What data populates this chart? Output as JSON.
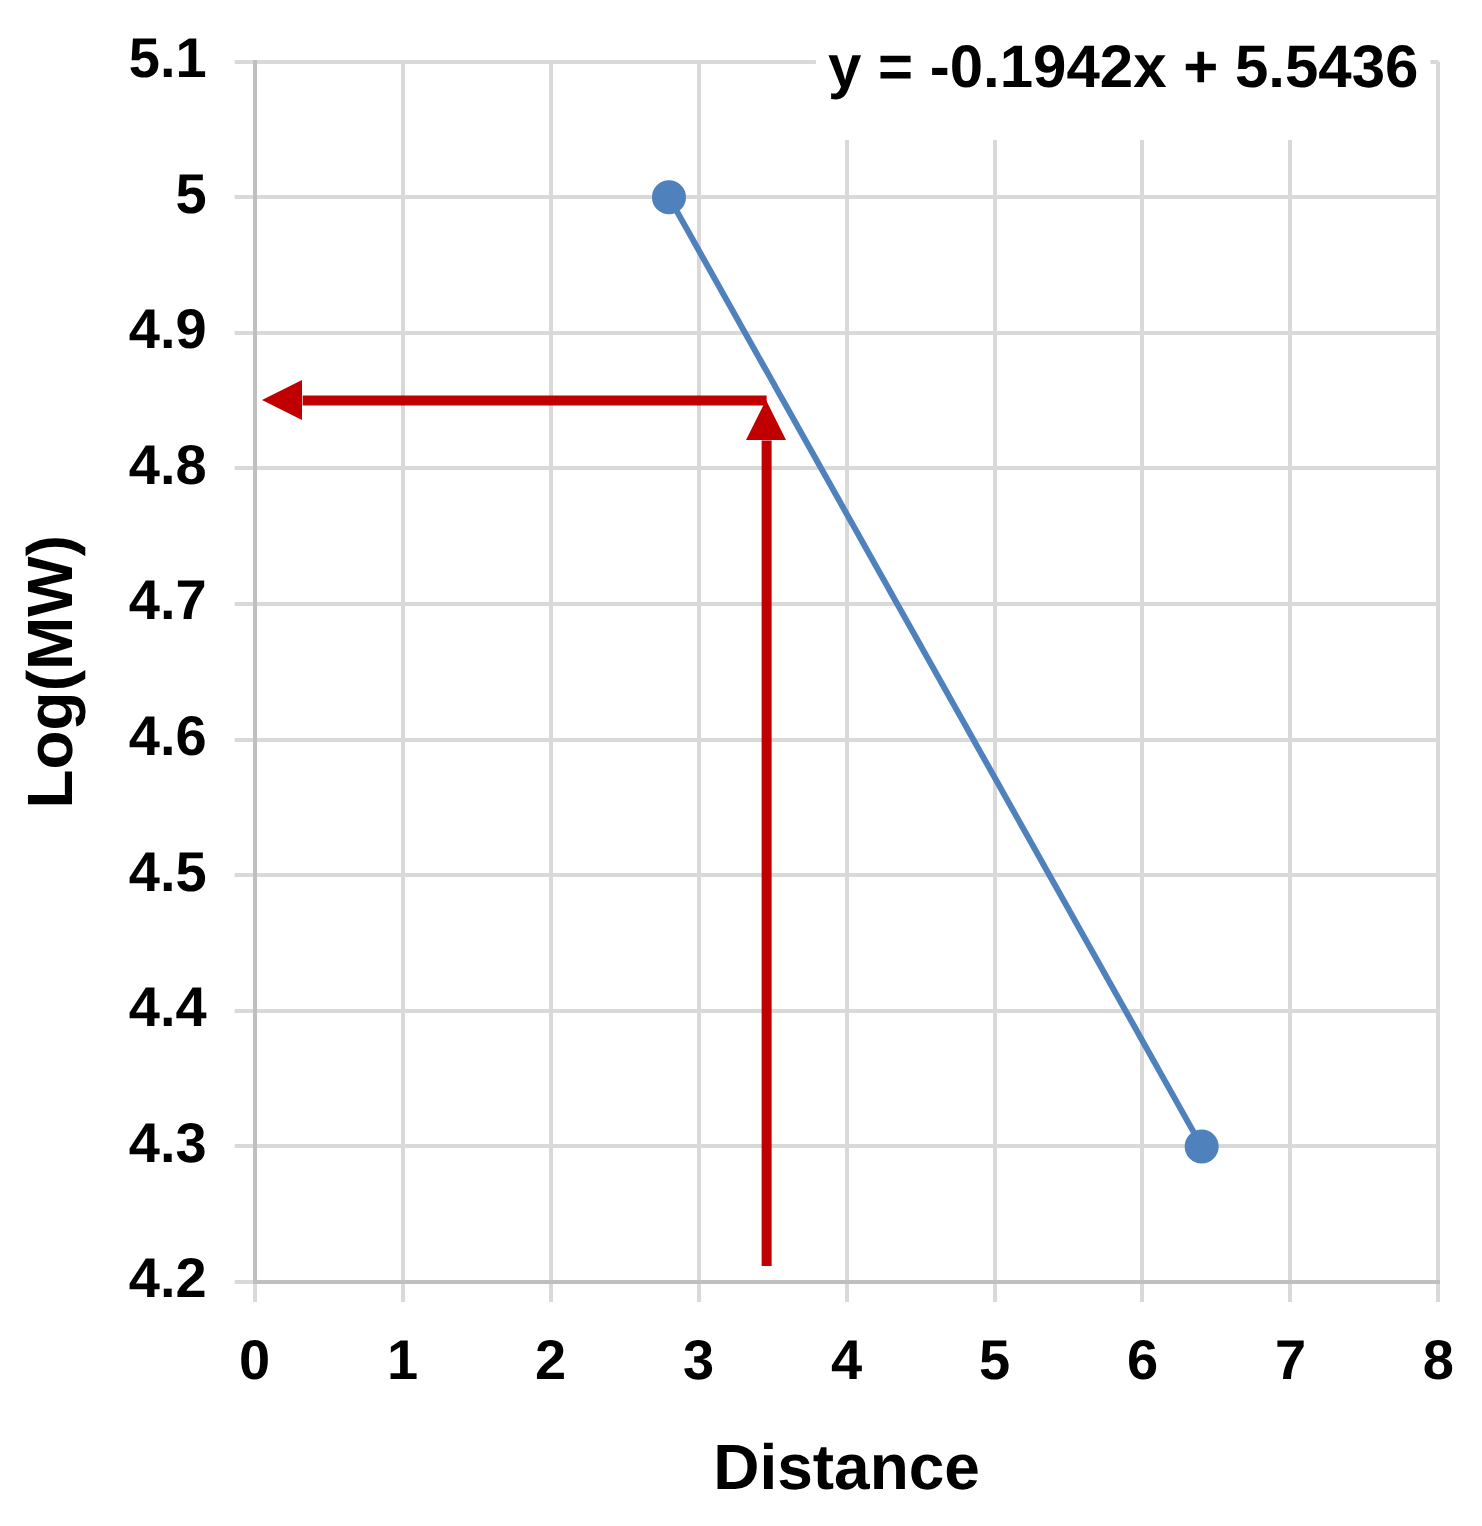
{
  "chart_data": {
    "type": "line",
    "xlabel": "Distance",
    "ylabel": "Log(MW)",
    "x": [
      2.8,
      6.4
    ],
    "series": [
      {
        "color": "#4f81bd",
        "values": [
          5.0,
          4.3
        ]
      }
    ],
    "xlim": [
      0,
      8
    ],
    "xticks": [
      0,
      1,
      2,
      3,
      4,
      5,
      6,
      7,
      8
    ],
    "ylim": [
      4.2,
      5.1
    ],
    "yticks": [
      4.2,
      4.3,
      4.4,
      4.5,
      4.6,
      4.7,
      4.8,
      4.9,
      5,
      5.1
    ],
    "grid": true,
    "legend": false,
    "marker": "circle",
    "line_style": "solid",
    "ref_lines": [
      {
        "axis": "x",
        "value": 3.46,
        "color": "#c00000"
      },
      {
        "axis": "y",
        "value": 4.85,
        "color": "#c00000"
      }
    ],
    "annotations": [
      "y = -0.1942x + 5.5436"
    ]
  }
}
